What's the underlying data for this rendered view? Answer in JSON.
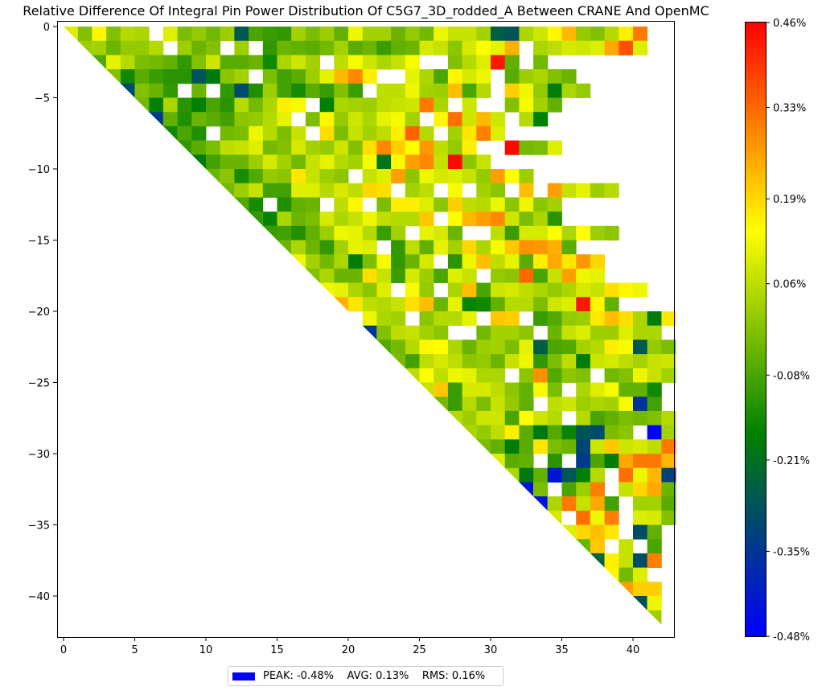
{
  "chart_data": {
    "type": "heatmap",
    "title": "Relative Difference Of Integral Pin Power Distribution Of C5G7_3D_rodded_A Between CRANE And OpenMC",
    "xlabel": "",
    "ylabel": "",
    "xlim": [
      0,
      43
    ],
    "ylim": [
      -43,
      0
    ],
    "x_ticks": [
      0,
      5,
      10,
      15,
      20,
      25,
      30,
      35,
      40
    ],
    "y_ticks": [
      0,
      -5,
      -10,
      -15,
      -20,
      -25,
      -30,
      -35,
      -40
    ],
    "grid": false,
    "symmetry": "upper triangle of a 43x43 octant map, diagonal cells drawn as triangles",
    "colorbar": {
      "min": -0.48,
      "max": 0.46,
      "unit": "%",
      "ticks": [
        0.46,
        0.33,
        0.19,
        0.06,
        -0.08,
        -0.21,
        -0.35,
        -0.48
      ],
      "tick_labels": [
        "0.46%",
        "0.33%",
        "0.19%",
        "0.06%",
        "-0.08%",
        "-0.21%",
        "-0.35%",
        "-0.48%"
      ],
      "colors": [
        "#0000ff",
        "#008000",
        "#ffff00",
        "#ff0000"
      ]
    },
    "summary": {
      "peak": "-0.48%",
      "avg": "0.13%",
      "rms": "0.16%"
    },
    "blank_cells": [
      [
        0,
        6
      ],
      [
        1,
        7
      ],
      [
        1,
        11
      ],
      [
        1,
        13
      ],
      [
        1,
        32
      ],
      [
        2,
        18
      ],
      [
        2,
        25
      ],
      [
        2,
        26
      ],
      [
        2,
        32
      ],
      [
        3,
        13
      ],
      [
        3,
        22
      ],
      [
        3,
        23
      ],
      [
        3,
        30
      ],
      [
        3,
        40
      ],
      [
        3,
        41
      ],
      [
        3,
        42
      ],
      [
        4,
        8
      ],
      [
        4,
        10
      ],
      [
        4,
        21
      ],
      [
        4,
        30
      ],
      [
        4,
        37
      ],
      [
        4,
        42
      ],
      [
        5,
        17
      ],
      [
        5,
        27
      ],
      [
        5,
        29
      ],
      [
        5,
        30
      ],
      [
        5,
        36
      ],
      [
        6,
        16
      ],
      [
        6,
        25
      ],
      [
        6,
        31
      ],
      [
        7,
        10
      ],
      [
        7,
        17
      ],
      [
        7,
        26
      ],
      [
        8,
        29
      ],
      [
        8,
        30
      ],
      [
        9,
        30
      ],
      [
        9,
        32
      ],
      [
        10,
        20
      ],
      [
        11,
        23
      ],
      [
        11,
        26
      ],
      [
        11,
        28
      ],
      [
        11,
        31
      ],
      [
        11,
        33
      ],
      [
        12,
        14
      ],
      [
        12,
        18
      ],
      [
        12,
        21
      ],
      [
        13,
        26
      ],
      [
        14,
        24
      ],
      [
        14,
        28
      ],
      [
        14,
        29
      ],
      [
        15,
        22
      ],
      [
        16,
        26
      ],
      [
        17,
        29
      ],
      [
        18,
        23
      ],
      [
        18,
        26
      ],
      [
        20,
        20
      ],
      [
        20,
        24
      ],
      [
        20,
        29
      ],
      [
        20,
        32
      ],
      [
        21,
        27
      ],
      [
        21,
        28
      ],
      [
        21,
        33
      ],
      [
        24,
        31
      ],
      [
        24,
        37
      ],
      [
        25,
        35
      ],
      [
        26,
        33
      ],
      [
        27,
        35
      ],
      [
        28,
        40
      ],
      [
        30,
        33
      ],
      [
        30,
        35
      ],
      [
        31,
        38
      ],
      [
        32,
        34
      ],
      [
        32,
        38
      ],
      [
        33,
        39
      ],
      [
        34,
        35
      ],
      [
        34,
        39
      ],
      [
        35,
        39
      ],
      [
        36,
        38
      ],
      [
        36,
        40
      ]
    ],
    "values": [
      [
        0.1,
        -0.01,
        0.15,
        -0.01,
        0.05,
        0.04,
        0.1,
        -0.02,
        0.01,
        -0.03,
        0.02,
        -0.27,
        -0.08,
        -0.1,
        -0.11,
        0.03,
        -0.02,
        0.02,
        -0.05,
        0.12,
        0.03,
        0.03,
        -0.04,
        0.01,
        -0.03,
        0.12,
        0.07,
        0.07,
        0.03,
        -0.25,
        -0.28,
        0.04,
        0.08,
        0.15,
        0.23,
        0.01,
        -0.01,
        0.05,
        0.16,
        0.31
      ],
      [
        0.02,
        0.03,
        -0.04,
        0.01,
        0.01,
        0.05,
        0.02,
        -0.04,
        -0.01,
        0.02,
        -0.11,
        -0.04,
        -0.05,
        -0.06,
        -0.03,
        0.03,
        -0.06,
        -0.04,
        -0.1,
        -0.05,
        -0.04,
        0.09,
        0.07,
        0.0,
        0.09,
        0.14,
        0.11,
        0.24,
        0.04,
        0.06,
        0.09,
        0.08,
        0.1,
        0.25,
        0.36,
        0.1
      ],
      [
        -0.07,
        0.11,
        0.05,
        -0.02,
        -0.03,
        -0.05,
        -0.11,
        -0.01,
        0.08,
        -0.06,
        -0.06,
        -0.04,
        -0.15,
        0.04,
        0.08,
        0.03,
        0.06,
        0.13,
        0.08,
        0.04,
        0.07,
        0.13,
        -0.01,
        0.05,
        0.1,
        0.43,
        -0.05,
        -0.03
      ],
      [
        -0.01,
        -0.15,
        -0.06,
        -0.1,
        -0.12,
        -0.12,
        -0.28,
        -0.19,
        0.0,
        0.03,
        -0.02,
        -0.09,
        -0.06,
        0.02,
        0.11,
        0.23,
        0.29,
        0.16,
        0.11,
        0.04,
        -0.08,
        0.15,
        0.09,
        0.12,
        -0.06,
        0.02,
        0.04,
        -0.01,
        -0.04
      ],
      [
        -0.3,
        -0.01,
        -0.04,
        -0.11,
        -0.04,
        -0.11,
        -0.3,
        -0.13,
        0.02,
        -0.09,
        -0.14,
        -0.06,
        -0.1,
        -0.01,
        -0.1,
        0.06,
        0.06,
        0.12,
        0.03,
        0.02,
        0.22,
        -0.08,
        0.05,
        0.2,
        0.12,
        0.01,
        -0.18,
        0.04,
        0.01
      ],
      [
        -0.03,
        -0.17,
        0.04,
        -0.12,
        -0.17,
        -0.08,
        -0.12,
        0.05,
        -0.03,
        0.04,
        0.16,
        0.13,
        -0.17,
        0.04,
        0.03,
        0.02,
        0.06,
        0.07,
        0.08,
        0.31,
        0.04,
        0.08,
        -0.01,
        0.13,
        0.03,
        -0.05
      ],
      [
        -0.34,
        -0.05,
        -0.13,
        -0.04,
        -0.06,
        -0.09,
        0.0,
        0.01,
        0.05,
        0.11,
        -0.02,
        0.15,
        0.01,
        0.08,
        0.04,
        0.11,
        0.13,
        0.03,
        0.15,
        0.32,
        0.08,
        0.23,
        0.08,
        0.05,
        -0.17
      ],
      [
        -0.15,
        -0.08,
        -0.13,
        -0.03,
        -0.02,
        0.12,
        0.05,
        -0.02,
        0.07,
        0.18,
        -0.02,
        0.07,
        0.03,
        0.06,
        0.16,
        0.34,
        0.05,
        0.03,
        0.17,
        0.3,
        0.1
      ],
      [
        -0.11,
        -0.06,
        -0.02,
        0.06,
        0.07,
        0.1,
        -0.03,
        -0.01,
        0.09,
        0.03,
        0.01,
        0.08,
        -0.01,
        0.18,
        0.29,
        0.2,
        0.14,
        0.27,
        0.06,
        0.01,
        0.16,
        0.45,
        -0.03,
        -0.02,
        0.1
      ],
      [
        -0.18,
        -0.09,
        -0.04,
        -0.04,
        0.02,
        0.09,
        0.03,
        -0.03,
        0.07,
        0.11,
        0.05,
        0.03,
        0.13,
        -0.2,
        0.15,
        0.26,
        0.29,
        0.07,
        0.45,
        0.0,
        0.07
      ],
      [
        -0.04,
        0.0,
        -0.14,
        -0.07,
        0.01,
        0.0,
        0.17,
        0.07,
        0.02,
        0.0,
        0.07,
        0.1,
        0.26,
        0.0,
        0.12,
        0.09,
        0.1,
        0.07,
        0.01,
        0.26,
        0.14,
        0.02
      ],
      [
        -0.03,
        0.02,
        0.07,
        -0.09,
        -0.09,
        0.1,
        0.1,
        0.05,
        0.09,
        0.06,
        0.19,
        0.18,
        0.03,
        0.06,
        0.13,
        0.03,
        0.0,
        0.22,
        0.26,
        0.07,
        0.11,
        0.02,
        0.05
      ],
      [
        -0.07,
        -0.14,
        -0.13,
        -0.05,
        -0.04,
        0.06,
        0.15,
        -0.02,
        0.16,
        0.16,
        0.1,
        0.0,
        0.2,
        0.06,
        0.05,
        0.12,
        0.0,
        0.12,
        0.0,
        0.03
      ],
      [
        -0.11,
        -0.16,
        0.04,
        -0.04,
        -0.02,
        0.09,
        0.04,
        0.07,
        0.12,
        0.06,
        0.05,
        0.05,
        0.21,
        0.14,
        0.23,
        0.26,
        0.29,
        0.08,
        -0.02,
        0.04,
        -0.12
      ],
      [
        -0.1,
        -0.09,
        -0.13,
        -0.05,
        0.02,
        0.12,
        0.11,
        0.05,
        -0.1,
        0.03,
        0.11,
        0.09,
        -0.04,
        0.06,
        -0.1,
        0.09,
        0.09,
        0.14,
        0.04,
        0.14,
        0.02,
        0.0
      ],
      [
        -0.04,
        0.04,
        -0.04,
        -0.11,
        0.03,
        0.11,
        0.1,
        -0.11,
        0.06,
        -0.05,
        0.11,
        0.03,
        0.19,
        0.04,
        0.13,
        0.21,
        0.28,
        0.27,
        0.24,
        -0.06
      ],
      [
        0.12,
        0.03,
        -0.03,
        0.04,
        -0.18,
        -0.02,
        0.13,
        -0.11,
        -0.04,
        0.09,
        -0.12,
        0.12,
        0.22,
        0.06,
        0.11,
        -0.06,
        0.16,
        0.25,
        0.17,
        0.27,
        0.19
      ],
      [
        -0.01,
        0.04,
        -0.04,
        -0.04,
        0.18,
        0.07,
        -0.1,
        0.09,
        0.02,
        -0.08,
        0.1,
        0.07,
        0.01,
        0.0,
        0.33,
        -0.08,
        0.07,
        0.26,
        0.12,
        0.11
      ],
      [
        0.12,
        0.11,
        0.04,
        0.0,
        0.1,
        0.13,
        0.01,
        0.04,
        0.22,
        -0.08,
        0.08,
        0.09,
        0.06,
        0.04,
        0.01,
        0.04,
        0.09,
        0.07,
        0.18,
        0.15,
        0.12
      ],
      [
        0.24,
        0.17,
        0.06,
        0.05,
        0.07,
        0.18,
        0.22,
        -0.04,
        0.11,
        -0.16,
        -0.15,
        -0.05,
        0.05,
        0.05,
        -0.02,
        0.08,
        0.1,
        0.43,
        0.15,
        -0.05
      ],
      [
        0.12,
        0.04,
        0.03,
        0.0,
        0.05,
        0.05,
        0.11,
        0.21,
        0.2,
        -0.1,
        -0.07,
        0.01,
        0.02,
        0.17,
        0.22,
        0.18,
        0.04,
        -0.18,
        0.17,
        -0.06,
        -0.01
      ],
      [
        -0.35,
        -0.01,
        0.06,
        0.07,
        0.03,
        0.0,
        -0.03,
        0.03,
        0.03,
        0.0,
        -0.04,
        0.07,
        0.1,
        0.02,
        0.02,
        0.1,
        0.04,
        0.04
      ],
      [
        -0.07,
        -0.03,
        0.05,
        0.15,
        0.14,
        0.04,
        -0.04,
        0.02,
        0.03,
        -0.02,
        0.11,
        -0.25,
        -0.08,
        -0.07,
        0.03,
        0.05,
        0.16,
        0.13,
        -0.27,
        0.01,
        -0.02
      ],
      [
        -0.02,
        -0.09,
        0.06,
        0.09,
        0.06,
        0.0,
        0.01,
        -0.04,
        0.07,
        0.12,
        -0.11,
        -0.02,
        0.06,
        -0.18,
        0.08,
        0.09,
        0.06,
        0.03,
        0.07,
        0.08,
        -0.07
      ],
      [
        0.06,
        0.14,
        0.06,
        0.12,
        0.11,
        0.04,
        0.04,
        0.0,
        0.28,
        -0.07,
        0.0,
        -0.01,
        -0.03,
        -0.01,
        0.12,
        0.07,
        0.03,
        -0.25,
        -0.17
      ],
      [
        0.07,
        0.21,
        -0.1,
        0.09,
        0.09,
        0.06,
        0.0,
        -0.05,
        0.13,
        -0.02,
        0.04,
        0.1,
        0.13,
        -0.05,
        -0.05,
        -0.15
      ],
      [
        -0.03,
        -0.1,
        0.05,
        -0.02,
        0.07,
        0.01,
        -0.05,
        0.06,
        0.08,
        0.02,
        0.04,
        0.03,
        0.13,
        -0.36,
        -0.09
      ],
      [
        0.05,
        0.02,
        0.08,
        0.08,
        -0.08,
        0.14,
        0.08,
        0.05,
        0.05,
        -0.08,
        -0.05,
        -0.02,
        -0.03,
        -0.01,
        0.05,
        0.06,
        0.03
      ],
      [
        0.04,
        0.01,
        0.06,
        0.16,
        -0.06,
        -0.19,
        -0.07,
        -0.16,
        -0.28,
        -0.3,
        -0.02,
        0.0,
        -0.48,
        0.03,
        0.17
      ],
      [
        -0.02,
        -0.05,
        -0.18,
        -0.06,
        0.17,
        -0.02,
        -0.04,
        -0.31,
        0.08,
        0.21,
        0.08,
        0.09,
        0.06,
        0.31
      ],
      [
        0.1,
        -0.06,
        -0.05,
        -0.12,
        -0.34,
        -0.08,
        -0.18,
        0.25,
        0.31,
        0.31,
        0.23,
        0.03
      ],
      [
        0.04,
        -0.19,
        -0.05,
        -0.43,
        -0.27,
        -0.17,
        0.05,
        0.32,
        0.12,
        0.23,
        -0.32
      ],
      [
        -0.43,
        -0.02,
        -0.08,
        0.02,
        0.3,
        0.07,
        0.19,
        0.25,
        -0.04
      ],
      [
        -0.44,
        0.04,
        0.31,
        0.07,
        0.25,
        -0.09,
        0.03,
        0.03,
        -0.06
      ],
      [
        0.09,
        0.32,
        0.12,
        0.3,
        0.1,
        0.09,
        -0.01
      ],
      [
        0.1,
        0.19,
        0.22,
        0.17,
        -0.29,
        -0.05
      ],
      [
        -0.04,
        0.21,
        0.07,
        -0.08
      ],
      [
        -0.24,
        0.16,
        0.07,
        -0.29,
        0.3
      ],
      [
        0.15,
        -0.03,
        0.1
      ],
      [
        0.26,
        0.2,
        0.2
      ],
      [
        -0.29,
        0.12
      ],
      [
        0.02
      ]
    ]
  }
}
